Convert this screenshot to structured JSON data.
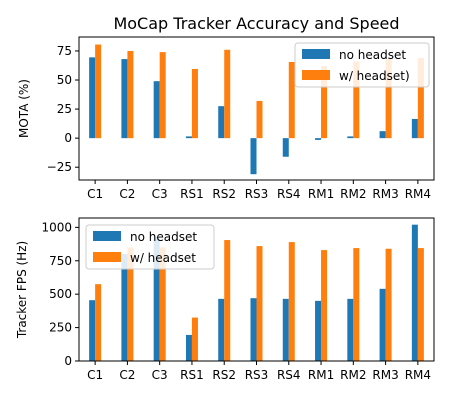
{
  "chart_data": [
    {
      "type": "bar",
      "title": "MoCap Tracker Accuracy and Speed",
      "xlabel": "",
      "ylabel": "MOTA (%)",
      "categories": [
        "C1",
        "C2",
        "C3",
        "RS1",
        "RS2",
        "RS3",
        "RS4",
        "RM1",
        "RM2",
        "RM3",
        "RM4"
      ],
      "series": [
        {
          "name": "no headset",
          "color": "#1f77b4",
          "values": [
            69.5,
            68,
            49,
            1.5,
            27.5,
            -31,
            -16,
            -1.5,
            1.5,
            6,
            16.5
          ]
        },
        {
          "name": "w/ headset)",
          "color": "#ff7f0e",
          "values": [
            80.5,
            75,
            74,
            59.5,
            76,
            32,
            65.5,
            62,
            66,
            68,
            69
          ]
        }
      ],
      "ylim": [
        -36,
        87
      ],
      "yticks": [
        -25,
        0,
        25,
        50,
        75
      ],
      "legend": "top-right",
      "grid": false
    },
    {
      "type": "bar",
      "title": "",
      "xlabel": "",
      "ylabel": "Tracker FPS (Hz)",
      "categories": [
        "C1",
        "C2",
        "C3",
        "RS1",
        "RS2",
        "RS3",
        "RS4",
        "RM1",
        "RM2",
        "RM3",
        "RM4"
      ],
      "series": [
        {
          "name": "no headset",
          "color": "#1f77b4",
          "values": [
            455,
            800,
            930,
            195,
            465,
            470,
            465,
            450,
            465,
            540,
            1020
          ]
        },
        {
          "name": "w/ headset",
          "color": "#ff7f0e",
          "values": [
            575,
            850,
            850,
            325,
            905,
            860,
            890,
            830,
            845,
            840,
            845
          ]
        }
      ],
      "ylim": [
        0,
        1070
      ],
      "yticks": [
        0,
        250,
        500,
        750,
        1000
      ],
      "legend": "top-left",
      "grid": false
    }
  ]
}
